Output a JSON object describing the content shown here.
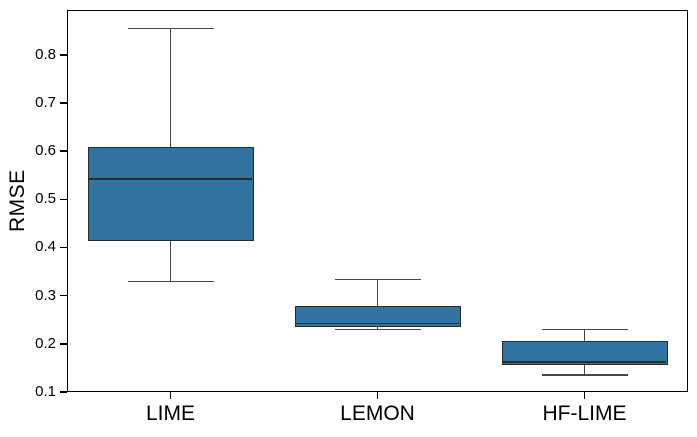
{
  "chart_data": {
    "type": "boxplot",
    "title": "",
    "xlabel": "",
    "ylabel": "RMSE",
    "categories": [
      "LIME",
      "LEMON",
      "HF-LIME"
    ],
    "y_ticks": [
      0.1,
      0.2,
      0.3,
      0.4,
      0.5,
      0.6,
      0.7,
      0.8
    ],
    "y_tick_labels": [
      "0.1",
      "0.2",
      "0.3",
      "0.4",
      "0.5",
      "0.6",
      "0.7",
      "0.8"
    ],
    "ylim": [
      0.1,
      0.893
    ],
    "grid": false,
    "legend": false,
    "colors": {
      "box_fill": "#3274a1",
      "box_edge": "#2a2a2a",
      "median_line": "#2a2a2a",
      "whisker": "#474747",
      "spine": "#000000",
      "tick_label": "#000000"
    },
    "series": [
      {
        "label": "LIME",
        "whisker_low": 0.33,
        "q1": 0.414,
        "median": 0.542,
        "q3": 0.609,
        "whisker_high": 0.855
      },
      {
        "label": "LEMON",
        "whisker_low": 0.23,
        "q1": 0.235,
        "median": 0.242,
        "q3": 0.278,
        "whisker_high": 0.333
      },
      {
        "label": "HF-LIME",
        "whisker_low": 0.135,
        "q1": 0.157,
        "median": 0.162,
        "q3": 0.206,
        "whisker_high": 0.23
      }
    ]
  }
}
